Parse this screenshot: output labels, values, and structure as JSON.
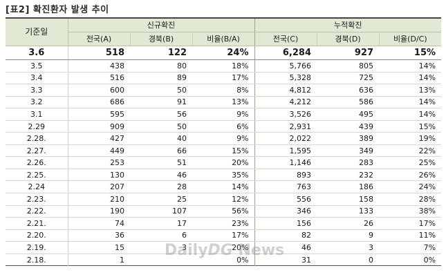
{
  "caption": "[표2] 확진환자 발생 추이",
  "header": {
    "date_col": "기준일",
    "group_new": "신규확진",
    "group_cum": "누적확진",
    "sub_columns": [
      "전국(A)",
      "경북(B)",
      "비율(B/A)",
      "전국(C)",
      "경북(D)",
      "비율(D/C)"
    ]
  },
  "rows": [
    {
      "date": "3.6",
      "cells": [
        "518",
        "122",
        "24%",
        "6,284",
        "927",
        "15%"
      ]
    },
    {
      "date": "3.5",
      "cells": [
        "438",
        "80",
        "18%",
        "5,766",
        "805",
        "14%"
      ]
    },
    {
      "date": "3.4",
      "cells": [
        "516",
        "89",
        "17%",
        "5,328",
        "725",
        "14%"
      ]
    },
    {
      "date": "3.3",
      "cells": [
        "600",
        "50",
        "8%",
        "4,812",
        "636",
        "13%"
      ]
    },
    {
      "date": "3.2",
      "cells": [
        "686",
        "91",
        "13%",
        "4,212",
        "586",
        "14%"
      ]
    },
    {
      "date": "3.1",
      "cells": [
        "595",
        "56",
        "9%",
        "3,526",
        "495",
        "14%"
      ]
    },
    {
      "date": "2.29",
      "cells": [
        "909",
        "50",
        "6%",
        "2,931",
        "439",
        "15%"
      ]
    },
    {
      "date": "2.28.",
      "cells": [
        "427",
        "40",
        "9%",
        "2,022",
        "389",
        "19%"
      ]
    },
    {
      "date": "2.27.",
      "cells": [
        "449",
        "66",
        "15%",
        "1,595",
        "349",
        "22%"
      ]
    },
    {
      "date": "2.26.",
      "cells": [
        "253",
        "51",
        "20%",
        "1,146",
        "283",
        "25%"
      ]
    },
    {
      "date": "2.25.",
      "cells": [
        "130",
        "46",
        "35%",
        "893",
        "232",
        "26%"
      ]
    },
    {
      "date": "2.24",
      "cells": [
        "207",
        "28",
        "14%",
        "763",
        "186",
        "24%"
      ]
    },
    {
      "date": "2.23.",
      "cells": [
        "210",
        "25",
        "12%",
        "556",
        "158",
        "28%"
      ]
    },
    {
      "date": "2.22.",
      "cells": [
        "190",
        "107",
        "56%",
        "346",
        "133",
        "38%"
      ]
    },
    {
      "date": "2.21.",
      "cells": [
        "74",
        "17",
        "23%",
        "156",
        "26",
        "17%"
      ]
    },
    {
      "date": "2.20.",
      "cells": [
        "36",
        "6",
        "17%",
        "82",
        "9",
        "11%"
      ]
    },
    {
      "date": "2.19.",
      "cells": [
        "15",
        "3",
        "20%",
        "46",
        "3",
        "7%"
      ]
    },
    {
      "date": "2.18.",
      "cells": [
        "1",
        "",
        "0%",
        "31",
        "0",
        "0%"
      ]
    }
  ],
  "watermark": {
    "part1": "Daily",
    "part2": "DG",
    "part3": " News"
  }
}
